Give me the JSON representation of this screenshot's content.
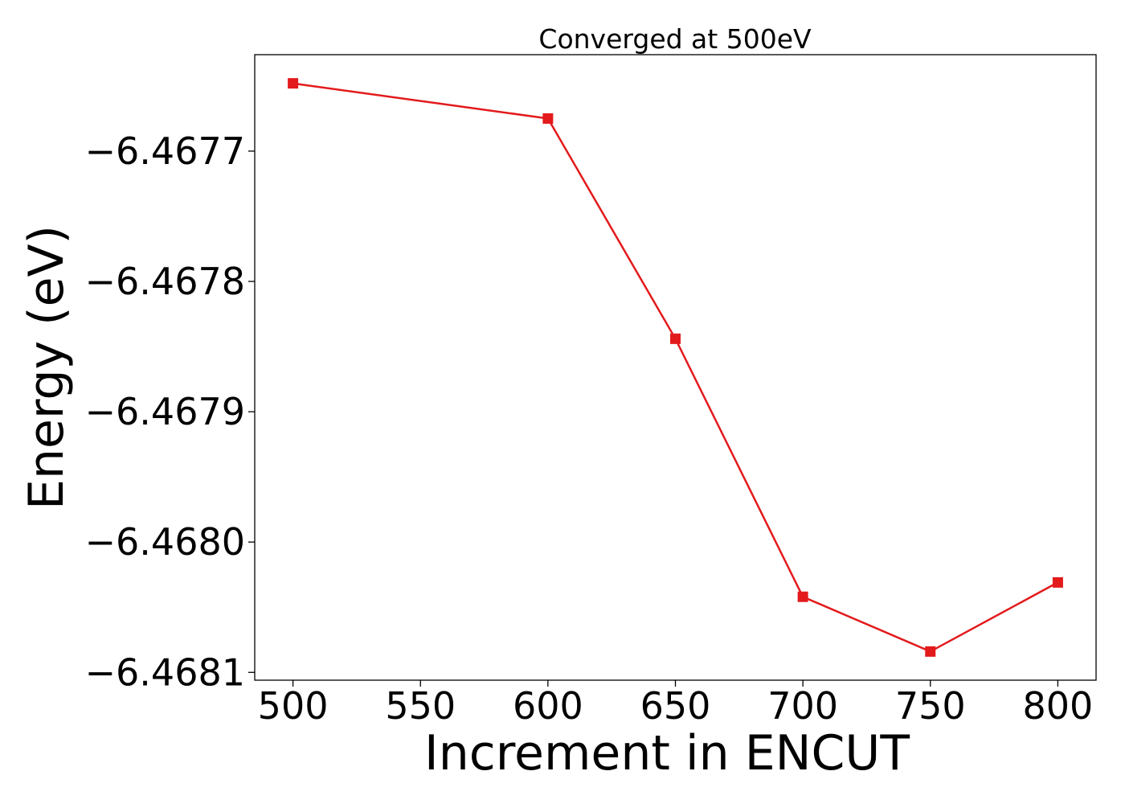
{
  "chart_data": {
    "type": "line",
    "title": "Converged at 500eV",
    "xlabel": "Increment in ENCUT",
    "ylabel": "Energy (eV)",
    "x": [
      500,
      600,
      650,
      700,
      750,
      800
    ],
    "series": [
      {
        "values": [
          -6.467648,
          -6.467675,
          -6.467844,
          -6.468042,
          -6.468084,
          -6.468031
        ],
        "color": "#e31a1c",
        "marker": "square"
      }
    ],
    "xlim": [
      485,
      815
    ],
    "ylim": [
      -6.468106,
      -6.467626
    ],
    "xticks": [
      500,
      550,
      600,
      650,
      700,
      750,
      800
    ],
    "xtick_labels": [
      "500",
      "550",
      "600",
      "650",
      "700",
      "750",
      "800"
    ],
    "yticks": [
      -6.4677,
      -6.4678,
      -6.4679,
      -6.468,
      -6.4681
    ],
    "ytick_labels": [
      "−6.4677",
      "−6.4678",
      "−6.4679",
      "−6.4680",
      "−6.4681"
    ],
    "grid": false,
    "legend": "none"
  }
}
